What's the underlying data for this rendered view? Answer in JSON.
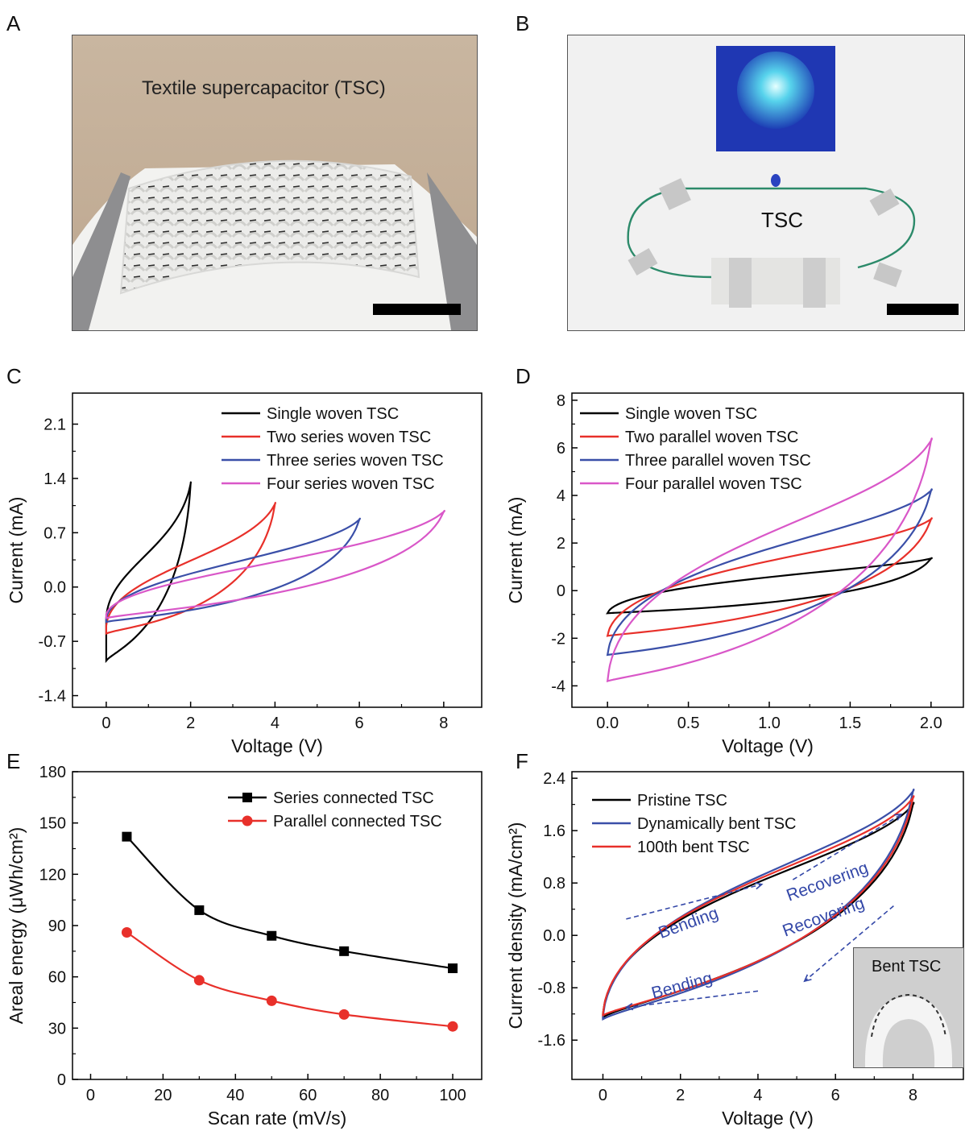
{
  "panels": {
    "A": {
      "letter": "A",
      "caption": "Textile supercapacitor (TSC)"
    },
    "B": {
      "letter": "B",
      "label": "TSC"
    },
    "C": {
      "letter": "C"
    },
    "D": {
      "letter": "D"
    },
    "E": {
      "letter": "E"
    },
    "F": {
      "letter": "F",
      "inset_label": "Bent TSC",
      "annotations": [
        "Bending",
        "Recovering",
        "Recovering",
        "Bending"
      ]
    }
  },
  "chart_data": [
    {
      "id": "C",
      "type": "line",
      "xlabel": "Voltage (V)",
      "ylabel": "Current (mA)",
      "xlim": [
        -0.8,
        8.9
      ],
      "ylim": [
        -1.55,
        2.5
      ],
      "xticks": [
        0,
        2,
        4,
        6,
        8
      ],
      "xtick_labels": [
        "0",
        "2",
        "4",
        "6",
        "8"
      ],
      "yticks": [
        -1.4,
        -0.7,
        0.0,
        0.7,
        1.4,
        2.1
      ],
      "ytick_labels": [
        "-1.4",
        "-0.7",
        "0.0",
        "0.7",
        "1.4",
        "2.1"
      ],
      "legend": "top-right",
      "series": [
        {
          "name": "Single woven TSC",
          "color": "#000000",
          "vmax": 2,
          "upper": [
            -0.4,
            0.25,
            0.5,
            1.33
          ],
          "lower": [
            -0.95,
            -0.8,
            -0.55,
            1.33
          ]
        },
        {
          "name": "Two series woven TSC",
          "color": "#e8302a",
          "vmax": 4,
          "upper": [
            -0.5,
            0.2,
            0.4,
            1.07
          ],
          "lower": [
            -0.6,
            -0.5,
            -0.4,
            1.07
          ]
        },
        {
          "name": "Three series woven TSC",
          "color": "#3a4fa8",
          "vmax": 6,
          "upper": [
            -0.4,
            0.18,
            0.4,
            0.87
          ],
          "lower": [
            -0.45,
            -0.38,
            -0.25,
            0.87
          ]
        },
        {
          "name": "Four series woven TSC",
          "color": "#d957c8",
          "vmax": 8,
          "upper": [
            -0.35,
            0.15,
            0.4,
            0.97
          ],
          "lower": [
            -0.4,
            -0.3,
            -0.1,
            0.97
          ]
        }
      ]
    },
    {
      "id": "D",
      "type": "line",
      "xlabel": "Voltage (V)",
      "ylabel": "Current (mA)",
      "xlim": [
        -0.22,
        2.2
      ],
      "ylim": [
        -4.9,
        8.3
      ],
      "xticks": [
        0.0,
        0.5,
        1.0,
        1.5,
        2.0
      ],
      "xtick_labels": [
        "0.0",
        "0.5",
        "1.0",
        "1.5",
        "2.0"
      ],
      "yticks": [
        -4,
        -2,
        0,
        2,
        4,
        6,
        8
      ],
      "ytick_labels": [
        "-4",
        "-2",
        "0",
        "2",
        "4",
        "6",
        "8"
      ],
      "legend": "top-left",
      "series": [
        {
          "name": "Single woven TSC",
          "color": "#000000",
          "vmax": 2,
          "upper": [
            -0.95,
            0.35,
            0.85,
            1.35
          ],
          "lower": [
            -0.95,
            -0.85,
            -0.6,
            1.35
          ]
        },
        {
          "name": "Two parallel woven TSC",
          "color": "#e8302a",
          "vmax": 2,
          "upper": [
            -1.9,
            1.0,
            1.6,
            3.0
          ],
          "lower": [
            -1.9,
            -1.7,
            -1.1,
            3.0
          ]
        },
        {
          "name": "Three parallel woven TSC",
          "color": "#3a4fa8",
          "vmax": 2,
          "upper": [
            -2.7,
            1.4,
            2.3,
            4.2
          ],
          "lower": [
            -2.7,
            -2.5,
            -1.6,
            4.2
          ]
        },
        {
          "name": "Four parallel woven TSC",
          "color": "#d957c8",
          "vmax": 2,
          "upper": [
            -3.8,
            1.9,
            3.0,
            6.3
          ],
          "lower": [
            -3.8,
            -3.4,
            -2.3,
            6.3
          ]
        }
      ]
    },
    {
      "id": "E",
      "type": "line",
      "xlabel": "Scan rate (mV/s)",
      "ylabel": "Areal energy (μWh/cm²)",
      "xlim": [
        -5,
        108
      ],
      "ylim": [
        0,
        180
      ],
      "xticks": [
        0,
        20,
        40,
        60,
        80,
        100
      ],
      "xtick_labels": [
        "0",
        "20",
        "40",
        "60",
        "80",
        "100"
      ],
      "yticks": [
        0,
        30,
        60,
        90,
        120,
        150,
        180
      ],
      "ytick_labels": [
        "0",
        "30",
        "60",
        "90",
        "120",
        "150",
        "180"
      ],
      "legend": "top-right",
      "series": [
        {
          "name": "Series connected TSC",
          "color": "#000000",
          "marker": "square",
          "x": [
            10,
            30,
            50,
            70,
            100
          ],
          "y": [
            142,
            99,
            84,
            75,
            65
          ]
        },
        {
          "name": "Parallel connected TSC",
          "color": "#e8302a",
          "marker": "circle",
          "x": [
            10,
            30,
            50,
            70,
            100
          ],
          "y": [
            86,
            58,
            46,
            38,
            31
          ]
        }
      ]
    },
    {
      "id": "F",
      "type": "line",
      "xlabel": "Voltage (V)",
      "ylabel": "Current density (mA/cm²)",
      "xlim": [
        -0.8,
        9.3
      ],
      "ylim": [
        -2.2,
        2.5
      ],
      "xticks": [
        0,
        2,
        4,
        6,
        8
      ],
      "xtick_labels": [
        "0",
        "2",
        "4",
        "6",
        "8"
      ],
      "yticks": [
        -1.6,
        -0.8,
        0.0,
        0.8,
        1.6,
        2.4
      ],
      "ytick_labels": [
        "-1.6",
        "-0.8",
        "0.0",
        "0.8",
        "1.6",
        "2.4"
      ],
      "legend": "top-left",
      "series": [
        {
          "name": "Pristine TSC",
          "color": "#000000",
          "vmax": 8,
          "upper": [
            -1.2,
            0.55,
            1.1,
            2.0
          ],
          "lower": [
            -1.25,
            -0.95,
            -0.35,
            2.0
          ]
        },
        {
          "name": "Dynamically bent TSC",
          "color": "#3a4fa8",
          "vmax": 8,
          "upper": [
            -1.25,
            0.6,
            1.2,
            2.2
          ],
          "lower": [
            -1.28,
            -1.0,
            -0.4,
            2.2
          ]
        },
        {
          "name": "100th bent TSC",
          "color": "#e8302a",
          "vmax": 8,
          "upper": [
            -1.2,
            0.58,
            1.15,
            2.1
          ],
          "lower": [
            -1.22,
            -0.97,
            -0.37,
            2.1
          ]
        }
      ]
    }
  ]
}
